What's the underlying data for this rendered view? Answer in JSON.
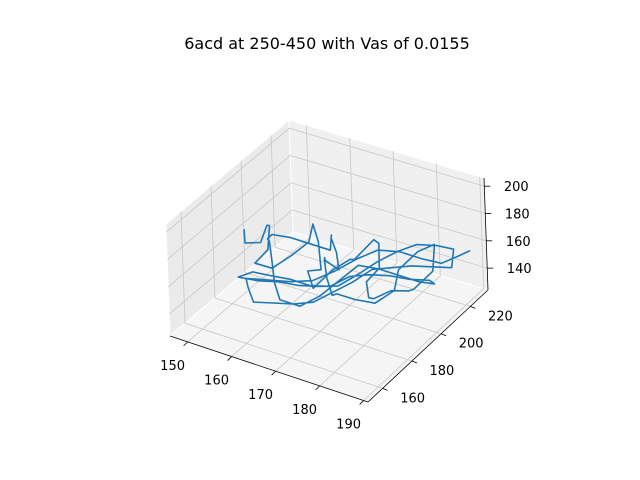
{
  "chart_data": {
    "type": "line3d",
    "title": "6acd at 250-450 with Vas of 0.0155",
    "xlabel": "",
    "ylabel": "",
    "zlabel": "",
    "xlim": [
      146,
      191
    ],
    "ylim": [
      150,
      232
    ],
    "zlim": [
      124,
      206
    ],
    "x_ticks": [
      "150",
      "160",
      "170",
      "180",
      "190"
    ],
    "y_ticks": [
      "160",
      "180",
      "200",
      "220"
    ],
    "z_ticks": [
      "140",
      "160",
      "180",
      "200"
    ],
    "grid": true,
    "colors": {
      "line": "#1f77b4",
      "pane_left": "#ebebeb",
      "pane_back": "#f0f0f0",
      "pane_floor": "#f5f5f5",
      "grid": "#c8c8c8"
    },
    "series": [
      {
        "x": [
          150.0,
          151.5,
          153.0,
          152.5,
          154.5,
          156.0,
          155.0,
          157.5,
          160.0,
          162.0,
          161.0,
          163.5,
          166.0,
          165.0,
          167.5,
          170.0,
          172.0,
          171.0,
          173.5,
          176.0,
          178.0,
          177.0,
          179.5,
          182.0,
          184.0,
          186.0,
          185.0,
          187.5,
          186.0,
          183.5,
          181.0,
          182.0,
          179.5,
          177.0,
          175.0,
          176.0,
          173.5,
          171.0,
          169.0,
          167.0,
          168.0,
          165.5,
          163.0,
          161.0,
          162.0,
          159.5,
          157.0,
          155.0,
          156.0,
          158.5,
          161.0,
          163.5,
          166.0,
          168.5,
          171.0,
          173.5,
          176.0,
          178.5,
          181.0,
          183.5,
          185.0,
          182.5,
          180.0,
          177.5,
          175.0,
          172.5,
          170.0,
          167.5,
          165.0,
          162.5,
          160.0,
          158.0,
          160.5,
          163.0,
          165.5,
          168.0,
          170.5,
          173.0,
          175.5,
          178.0,
          180.5,
          183.0,
          185.5,
          187.0,
          184.5,
          182.0,
          179.5,
          177.0,
          174.5,
          172.0,
          169.5,
          167.0,
          164.5,
          162.0,
          159.5,
          157.0,
          160.0,
          163.0,
          166.0,
          169.0,
          172.0,
          175.0,
          178.0,
          181.0,
          184.0,
          186.5,
          188.5
        ],
        "y": [
          190,
          186,
          192,
          198,
          194,
          188,
          182,
          186,
          192,
          198,
          204,
          200,
          194,
          188,
          184,
          190,
          196,
          202,
          208,
          204,
          198,
          192,
          186,
          182,
          188,
          194,
          200,
          206,
          212,
          208,
          202,
          196,
          190,
          184,
          178,
          172,
          176,
          182,
          188,
          194,
          200,
          206,
          210,
          216,
          212,
          206,
          200,
          194,
          188,
          182,
          176,
          170,
          166,
          172,
          178,
          184,
          190,
          196,
          202,
          208,
          214,
          218,
          212,
          206,
          200,
          194,
          188,
          182,
          176,
          170,
          166,
          162,
          168,
          174,
          180,
          186,
          192,
          198,
          204,
          210,
          216,
          222,
          226,
          220,
          214,
          208,
          202,
          196,
          190,
          184,
          178,
          172,
          166,
          160,
          164,
          170,
          176,
          182,
          188,
          194,
          200,
          206,
          212,
          218,
          222,
          226,
          228
        ],
        "z": [
          166,
          162,
          158,
          164,
          170,
          160,
          155,
          150,
          156,
          162,
          168,
          162,
          150,
          154,
          148,
          158,
          162,
          155,
          166,
          170,
          160,
          155,
          152,
          158,
          160,
          156,
          150,
          160,
          172,
          168,
          158,
          150,
          144,
          150,
          158,
          164,
          170,
          175,
          168,
          158,
          146,
          150,
          154,
          148,
          142,
          150,
          158,
          164,
          168,
          175,
          170,
          162,
          156,
          148,
          152,
          160,
          168,
          162,
          154,
          146,
          140,
          136,
          140,
          146,
          150,
          152,
          148,
          152,
          160,
          166,
          170,
          168,
          162,
          158,
          152,
          148,
          145,
          150,
          156,
          160,
          162,
          158,
          154,
          148,
          152,
          156,
          158,
          160,
          154,
          150,
          146,
          148,
          152,
          156,
          160,
          158,
          154,
          150,
          148,
          152,
          158,
          162,
          158,
          150,
          146,
          150,
          154
        ]
      }
    ]
  }
}
